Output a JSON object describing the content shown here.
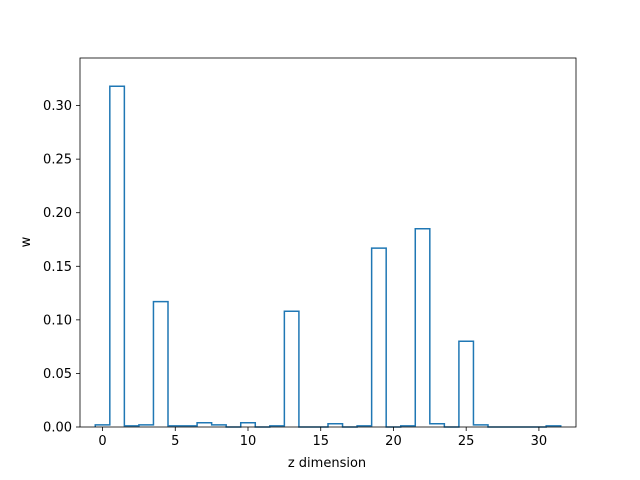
{
  "chart_data": {
    "type": "bar",
    "style": "step-histogram",
    "title": "",
    "xlabel": "z dimension",
    "ylabel": "w",
    "xlim": [
      -1.55,
      32.55
    ],
    "ylim": [
      0,
      0.3444
    ],
    "x_ticks": [
      0,
      5,
      10,
      15,
      20,
      25,
      30
    ],
    "x_tick_labels": [
      "0",
      "5",
      "10",
      "15",
      "20",
      "25",
      "30"
    ],
    "y_ticks": [
      0.0,
      0.05,
      0.1,
      0.15,
      0.2,
      0.25,
      0.3
    ],
    "y_tick_labels": [
      "0.00",
      "0.05",
      "0.10",
      "0.15",
      "0.20",
      "0.25",
      "0.30"
    ],
    "grid": false,
    "line_color": "#1f77b4",
    "x": [
      0,
      1,
      2,
      3,
      4,
      5,
      6,
      7,
      8,
      9,
      10,
      11,
      12,
      13,
      14,
      15,
      16,
      17,
      18,
      19,
      20,
      21,
      22,
      23,
      24,
      25,
      26,
      27,
      28,
      29,
      30,
      31
    ],
    "values": [
      0.002,
      0.318,
      0.001,
      0.002,
      0.117,
      0.001,
      0.001,
      0.004,
      0.002,
      0.0,
      0.004,
      0.0,
      0.001,
      0.108,
      0.0,
      0.0,
      0.003,
      0.0,
      0.001,
      0.167,
      0.0,
      0.001,
      0.185,
      0.003,
      0.0,
      0.08,
      0.002,
      0.0,
      0.0,
      0.0,
      0.0,
      0.001
    ]
  }
}
